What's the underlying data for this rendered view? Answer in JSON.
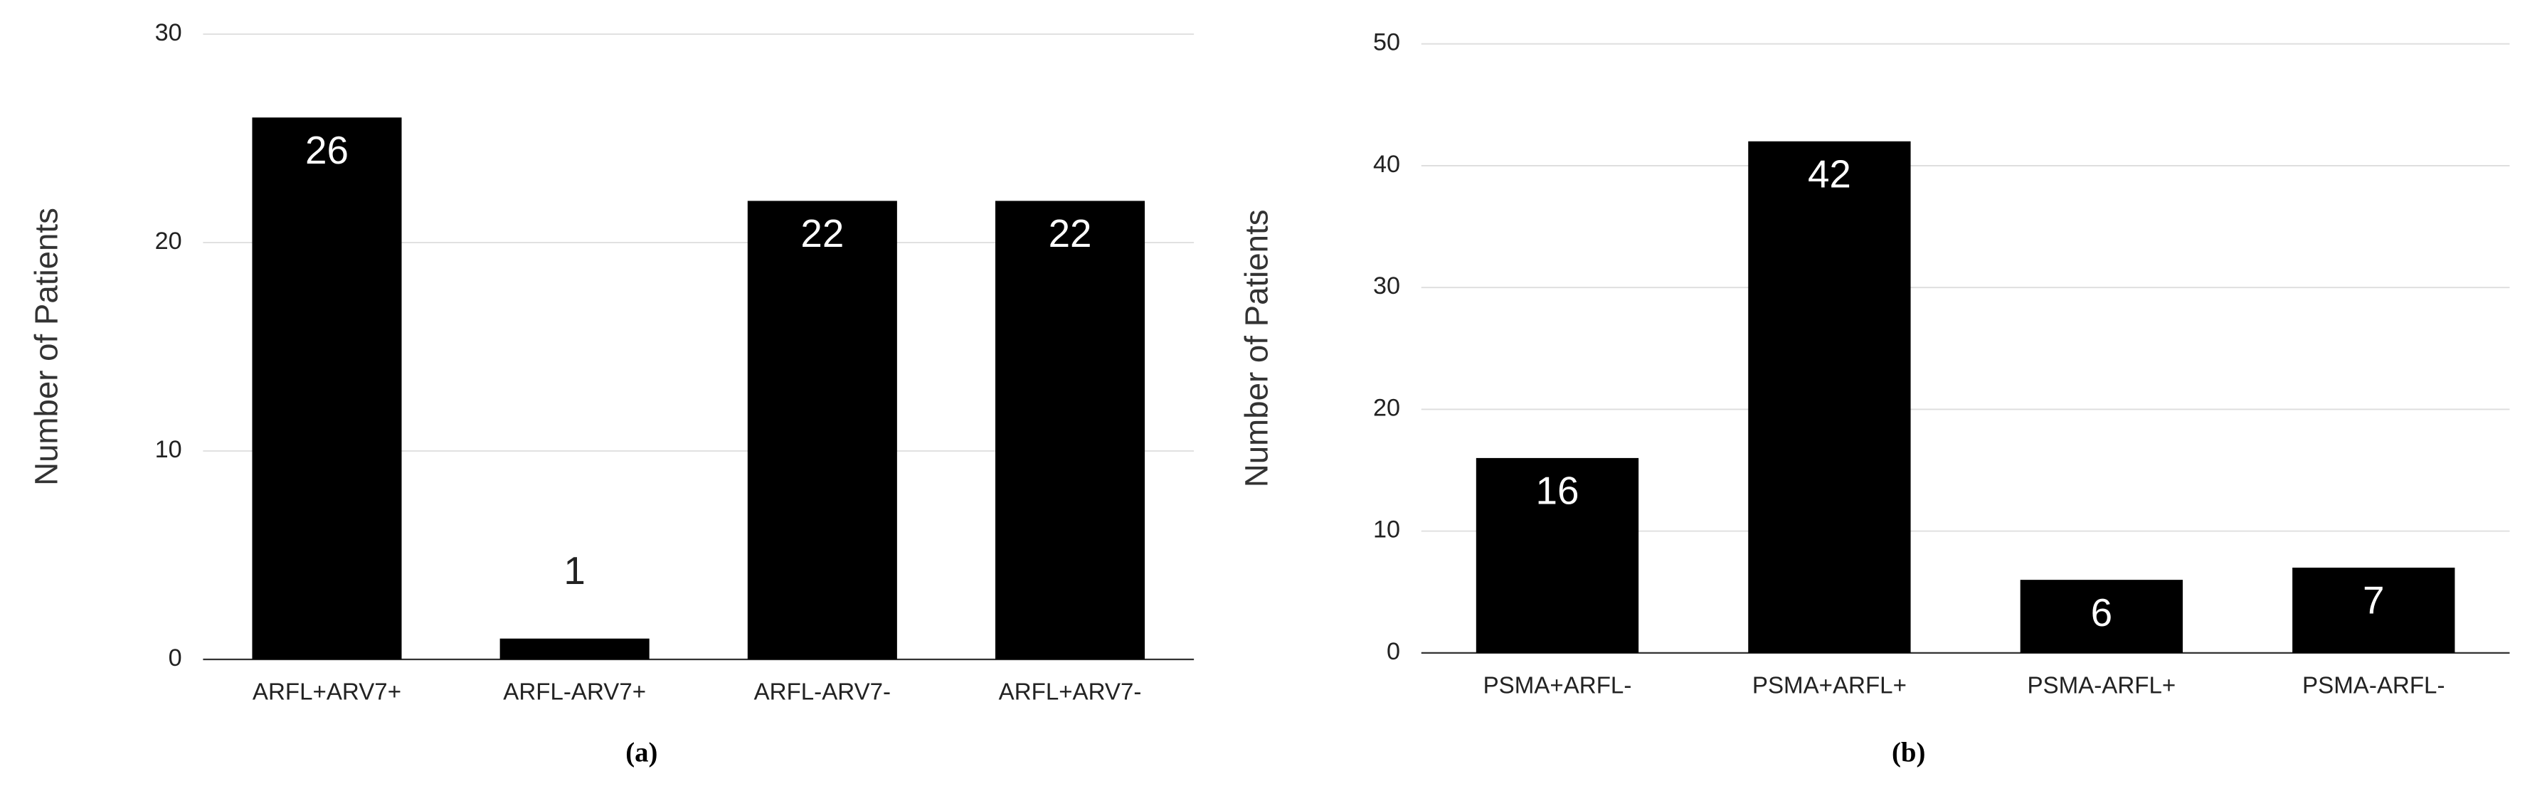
{
  "chart_data": [
    {
      "type": "bar",
      "caption": "(a)",
      "y_label": "Number of Patients",
      "categories": [
        "ARFL+ARV7+",
        "ARFL-ARV7+",
        "ARFL-ARV7-",
        "ARFL+ARV7-"
      ],
      "values": [
        26,
        1,
        22,
        22
      ],
      "color": "#000000",
      "ylim": [
        0,
        30
      ],
      "yticks": [
        0,
        10,
        20,
        30
      ],
      "grid": true
    },
    {
      "type": "bar",
      "caption": "(b)",
      "y_label": "Number of Patients",
      "categories": [
        "PSMA+ARFL-",
        "PSMA+ARFL+",
        "PSMA-ARFL+",
        "PSMA-ARFL-"
      ],
      "values": [
        16,
        42,
        6,
        7
      ],
      "color": "#000000",
      "ylim": [
        0,
        50
      ],
      "yticks": [
        0,
        10,
        20,
        30,
        40,
        50
      ],
      "grid": true
    }
  ]
}
